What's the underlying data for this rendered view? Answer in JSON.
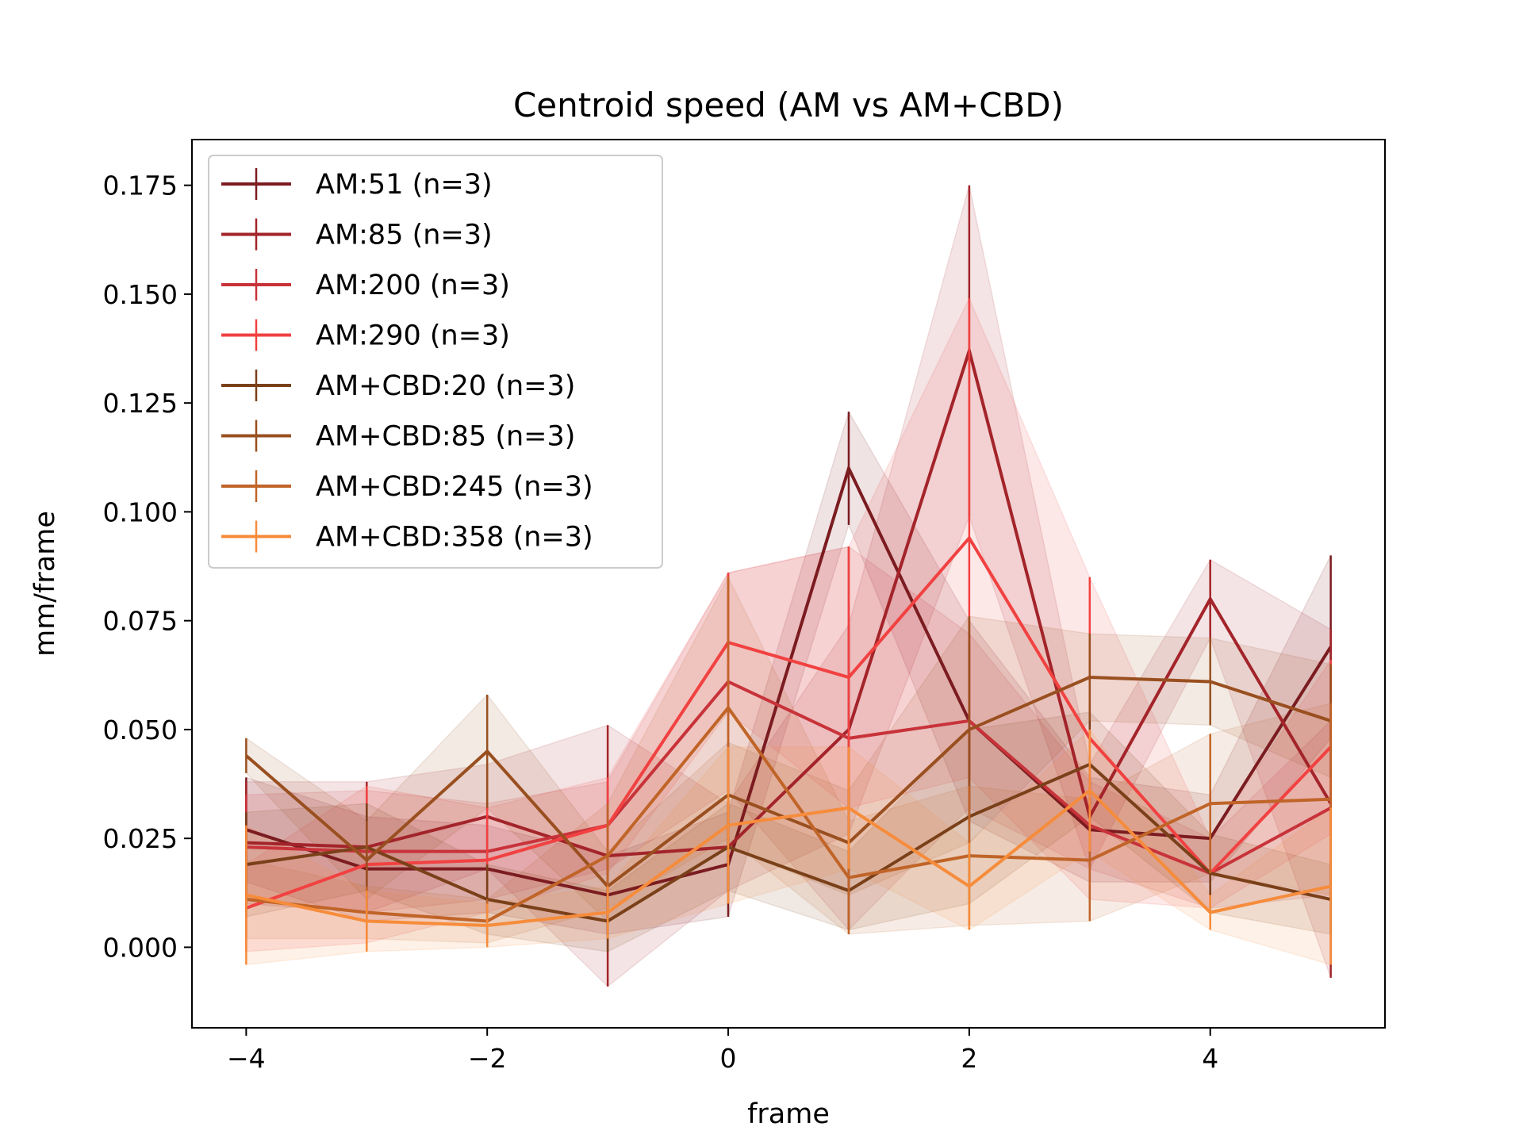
{
  "chart_data": {
    "type": "line",
    "title": "Centroid speed (AM vs AM+CBD)",
    "xlabel": "frame",
    "ylabel": "mm/frame",
    "xlim": [
      -4.45,
      5.45
    ],
    "ylim": [
      -0.0185,
      0.1855
    ],
    "xticks": [
      -4,
      -2,
      0,
      2,
      4
    ],
    "xtick_labels": [
      "−4",
      "−2",
      "0",
      "2",
      "4"
    ],
    "yticks": [
      0.0,
      0.025,
      0.05,
      0.075,
      0.1,
      0.125,
      0.15,
      0.175
    ],
    "ytick_labels": [
      "0.000",
      "0.025",
      "0.050",
      "0.075",
      "0.100",
      "0.125",
      "0.150",
      "0.175"
    ],
    "grid": false,
    "legend_position": "top-left",
    "x": [
      -4,
      -3,
      -2,
      -1,
      0,
      1,
      2,
      3,
      4,
      5
    ],
    "series": [
      {
        "name": "AM:51 (n=3)",
        "color": "#7b1c20",
        "values": [
          0.027,
          0.018,
          0.018,
          0.012,
          0.019,
          0.11,
          0.052,
          0.027,
          0.025,
          0.069
        ],
        "errors": [
          0.012,
          0.012,
          0.01,
          0.009,
          0.012,
          0.013,
          0.023,
          0.012,
          0.01,
          0.021
        ]
      },
      {
        "name": "AM:85 (n=3)",
        "color": "#a3242a",
        "values": [
          0.024,
          0.023,
          0.03,
          0.021,
          0.023,
          0.05,
          0.137,
          0.03,
          0.08,
          0.033
        ],
        "errors": [
          0.014,
          0.015,
          0.012,
          0.03,
          0.01,
          0.024,
          0.038,
          0.012,
          0.009,
          0.04
        ]
      },
      {
        "name": "AM:200 (n=3)",
        "color": "#c8333a",
        "values": [
          0.023,
          0.022,
          0.022,
          0.028,
          0.061,
          0.048,
          0.052,
          0.028,
          0.017,
          0.032
        ],
        "errors": [
          0.012,
          0.014,
          0.011,
          0.01,
          0.025,
          0.044,
          0.02,
          0.01,
          0.008,
          0.02
        ]
      },
      {
        "name": "AM:290 (n=3)",
        "color": "#f14141",
        "values": [
          0.009,
          0.019,
          0.02,
          0.028,
          0.07,
          0.062,
          0.094,
          0.048,
          0.017,
          0.046
        ],
        "errors": [
          0.01,
          0.018,
          0.012,
          0.011,
          0.016,
          0.03,
          0.055,
          0.037,
          0.008,
          0.02
        ]
      },
      {
        "name": "AM+CBD:20 (n=3)",
        "color": "#7a4019",
        "values": [
          0.019,
          0.023,
          0.011,
          0.006,
          0.023,
          0.013,
          0.03,
          0.042,
          0.017,
          0.011
        ],
        "errors": [
          0.012,
          0.01,
          0.008,
          0.007,
          0.01,
          0.009,
          0.02,
          0.012,
          0.009,
          0.008
        ]
      },
      {
        "name": "AM+CBD:85 (n=3)",
        "color": "#994f1f",
        "values": [
          0.044,
          0.02,
          0.045,
          0.014,
          0.035,
          0.024,
          0.05,
          0.062,
          0.061,
          0.052
        ],
        "errors": [
          0.004,
          0.009,
          0.013,
          0.008,
          0.012,
          0.012,
          0.026,
          0.01,
          0.01,
          0.013
        ]
      },
      {
        "name": "AM+CBD:245 (n=3)",
        "color": "#c06428",
        "values": [
          0.011,
          0.008,
          0.006,
          0.021,
          0.055,
          0.016,
          0.021,
          0.02,
          0.033,
          0.034
        ],
        "errors": [
          0.009,
          0.006,
          0.005,
          0.012,
          0.03,
          0.013,
          0.016,
          0.014,
          0.016,
          0.022
        ]
      },
      {
        "name": "AM+CBD:358 (n=3)",
        "color": "#f68c3b",
        "values": [
          0.012,
          0.006,
          0.005,
          0.008,
          0.028,
          0.032,
          0.014,
          0.036,
          0.008,
          0.014
        ],
        "errors": [
          0.016,
          0.007,
          0.005,
          0.006,
          0.018,
          0.014,
          0.01,
          0.014,
          0.004,
          0.018
        ]
      }
    ]
  }
}
